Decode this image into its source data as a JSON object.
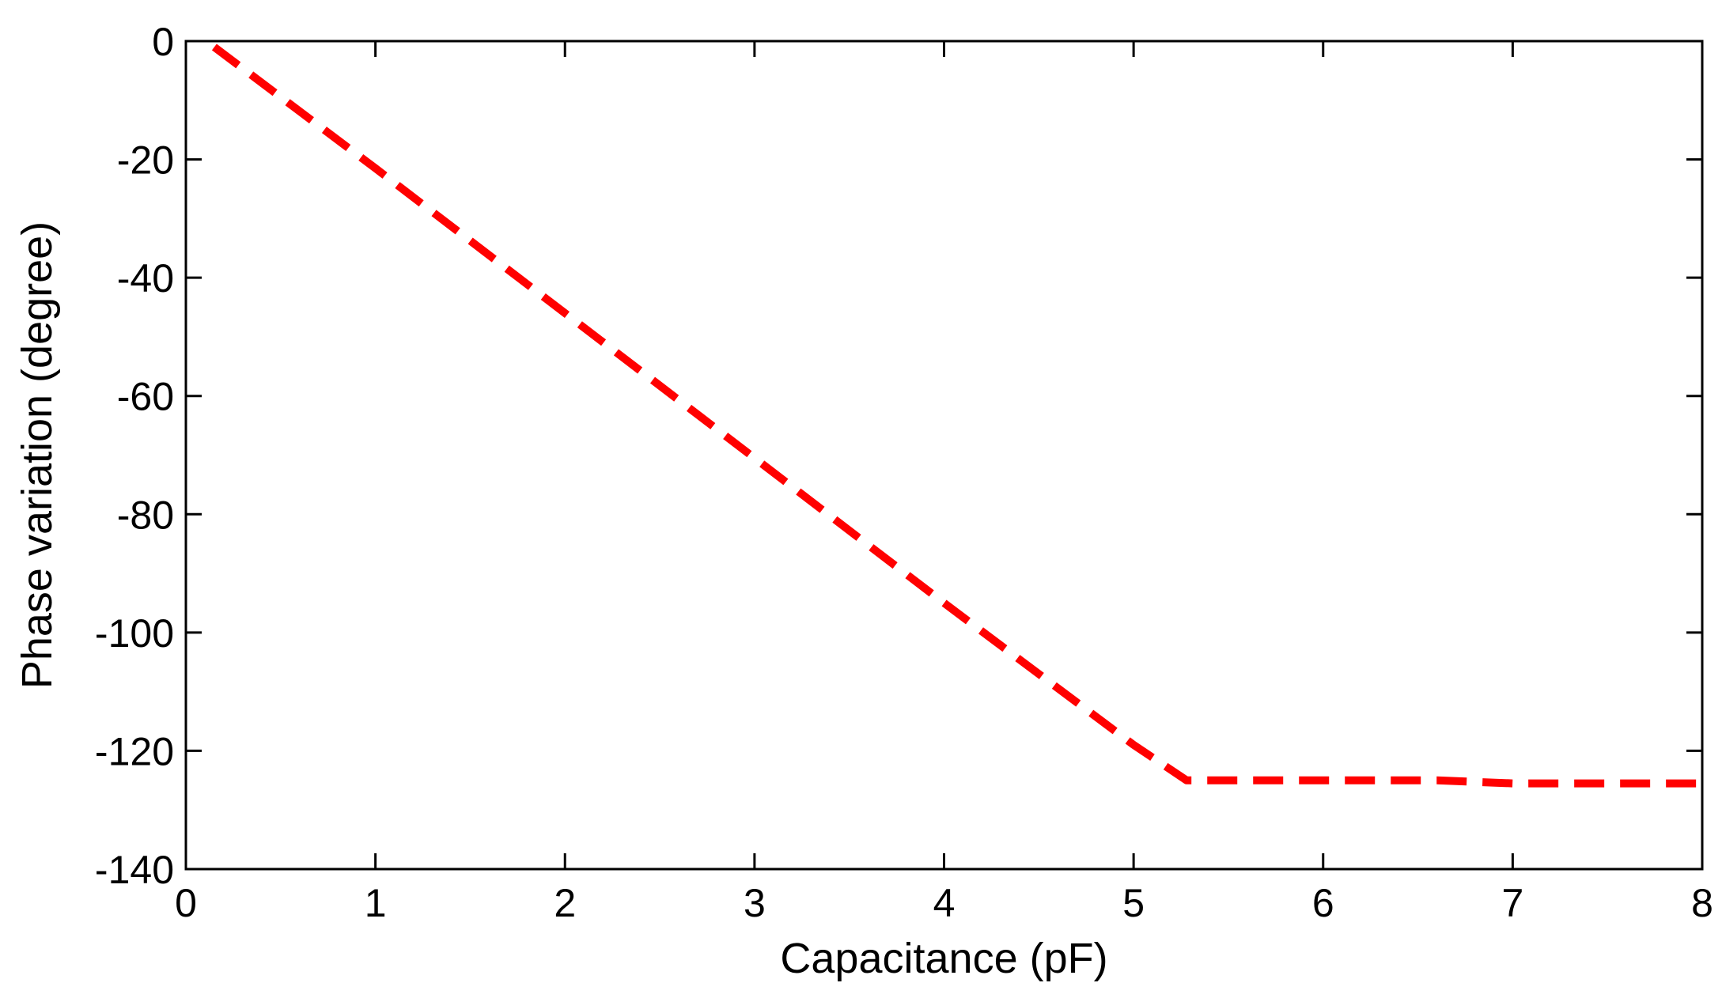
{
  "chart_data": {
    "type": "line",
    "title": "",
    "xlabel": "Capacitance (pF)",
    "ylabel": "Phase variation (degree)",
    "xlim": [
      0,
      8
    ],
    "ylim": [
      -140,
      0
    ],
    "x_ticks": [
      0,
      1,
      2,
      3,
      4,
      5,
      6,
      7,
      8
    ],
    "x_tick_labels": [
      "0",
      "1",
      "2",
      "3",
      "4",
      "5",
      "6",
      "7",
      "8"
    ],
    "y_ticks": [
      0,
      -20,
      -40,
      -60,
      -80,
      -100,
      -120,
      -140
    ],
    "y_tick_labels": [
      "0",
      "-20",
      "-40",
      "-60",
      "-80",
      "-100",
      "-120",
      "-140"
    ],
    "grid": false,
    "series": [
      {
        "color": "#ff0000",
        "line_style": "dashed",
        "x": [
          0.15,
          1.0,
          2.0,
          3.0,
          4.0,
          5.0,
          5.28,
          6.0,
          6.6,
          7.0,
          8.0
        ],
        "y": [
          -1,
          -21.5,
          -46,
          -70.5,
          -95,
          -119,
          -125,
          -125,
          -125,
          -125.5,
          -125.5
        ]
      }
    ]
  }
}
